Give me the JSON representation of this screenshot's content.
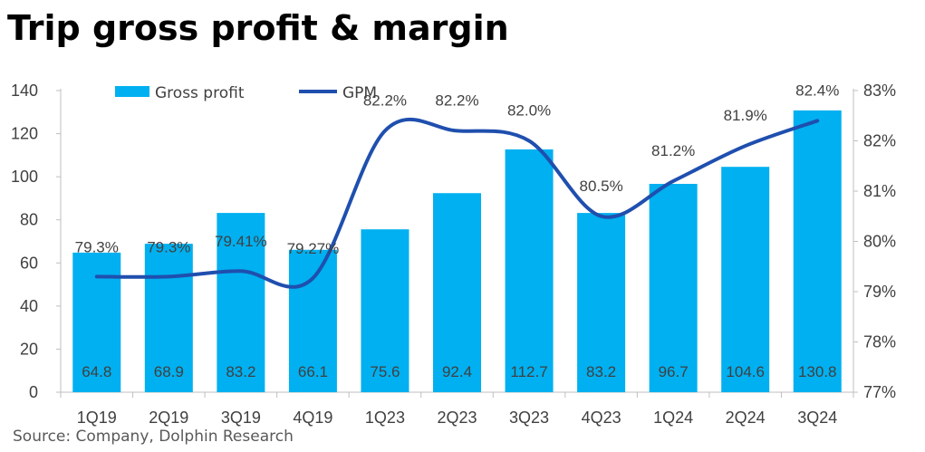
{
  "title": "Trip gross profit & margin",
  "source": "Source: Company, Dolphin Research",
  "colors": {
    "bar": "#00B0F0",
    "line": "#1F4FAE",
    "axis": "#BFBFBF",
    "text": "#404040"
  },
  "chart_data": {
    "type": "bar",
    "categories": [
      "1Q19",
      "2Q19",
      "3Q19",
      "4Q19",
      "1Q23",
      "2Q23",
      "3Q23",
      "4Q23",
      "1Q24",
      "2Q24",
      "3Q24"
    ],
    "series": [
      {
        "name": "Gross profit",
        "type": "bar",
        "axis": "left",
        "values": [
          64.8,
          68.9,
          83.2,
          66.1,
          75.6,
          92.4,
          112.7,
          83.2,
          96.7,
          104.6,
          130.8
        ],
        "labels": [
          "64.8",
          "68.9",
          "83.2",
          "66.1",
          "75.6",
          "92.4",
          "112.7",
          "83.2",
          "96.7",
          "104.6",
          "130.8"
        ]
      },
      {
        "name": "GPM",
        "type": "line",
        "axis": "right",
        "values": [
          79.3,
          79.3,
          79.41,
          79.27,
          82.2,
          82.2,
          82.0,
          80.5,
          81.2,
          81.9,
          82.4
        ],
        "labels": [
          "79.3%",
          "79.3%",
          "79.41%",
          "79.27%",
          "82.2%",
          "82.2%",
          "82.0%",
          "80.5%",
          "81.2%",
          "81.9%",
          "82.4%"
        ]
      }
    ],
    "y_left": {
      "ticks": [
        0,
        20,
        40,
        60,
        80,
        100,
        120,
        140
      ],
      "ylim": [
        0,
        140
      ]
    },
    "y_right": {
      "ticks": [
        "77%",
        "78%",
        "79%",
        "80%",
        "81%",
        "82%",
        "83%"
      ],
      "ylim": [
        77,
        83
      ]
    },
    "legend": {
      "position": "top-left"
    },
    "grid": false
  }
}
